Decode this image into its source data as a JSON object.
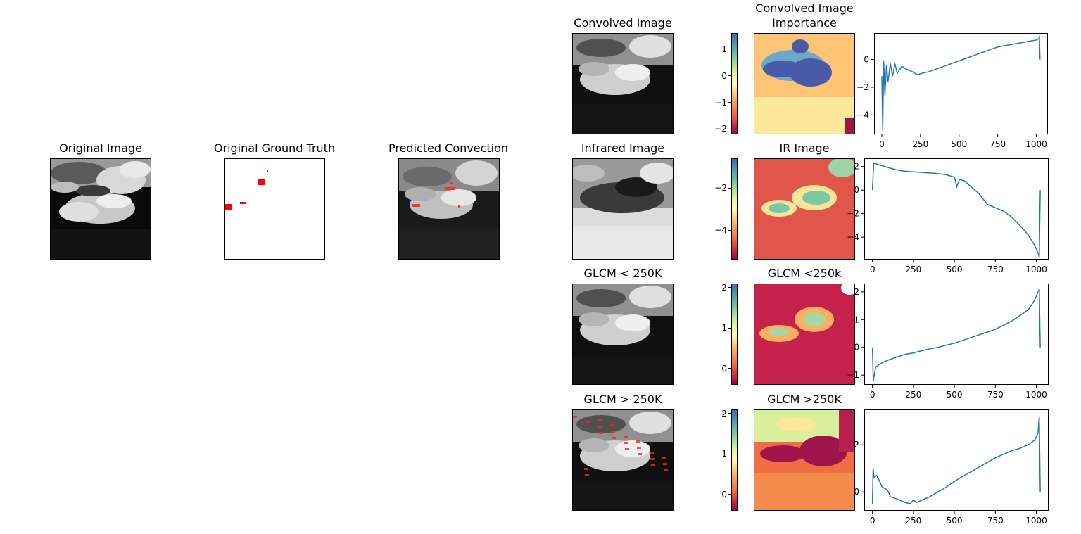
{
  "left_panels": {
    "original_image": {
      "title": "Original Image"
    },
    "ground_truth": {
      "title": "Original Ground Truth"
    },
    "predicted": {
      "title": "Predicted Convection"
    }
  },
  "rows": [
    {
      "image_title": "Convolved Image",
      "importance_title_line1": "Convolved Image",
      "importance_title_line2": "Importance",
      "colorbar_ticks": [
        "1",
        "0",
        "−1",
        "−2"
      ],
      "line": {
        "type": "line",
        "xticks": [
          "0",
          "250",
          "500",
          "750",
          "1000"
        ],
        "yticks": [
          "0",
          "−2",
          "−4"
        ],
        "xlim": [
          -50,
          1075
        ],
        "ylim": [
          -5.4,
          1.9
        ],
        "points": [
          [
            0,
            -1.2
          ],
          [
            6,
            -5.1
          ],
          [
            12,
            -0.1
          ],
          [
            20,
            -2.6
          ],
          [
            30,
            -0.4
          ],
          [
            40,
            -1.6
          ],
          [
            55,
            -0.3
          ],
          [
            70,
            -1.2
          ],
          [
            85,
            -0.3
          ],
          [
            100,
            -1.0
          ],
          [
            130,
            -0.5
          ],
          [
            160,
            -0.7
          ],
          [
            200,
            -0.9
          ],
          [
            230,
            -1.1
          ],
          [
            260,
            -1.0
          ],
          [
            300,
            -0.9
          ],
          [
            350,
            -0.7
          ],
          [
            400,
            -0.5
          ],
          [
            450,
            -0.3
          ],
          [
            500,
            -0.1
          ],
          [
            550,
            0.1
          ],
          [
            600,
            0.3
          ],
          [
            650,
            0.5
          ],
          [
            700,
            0.7
          ],
          [
            750,
            0.9
          ],
          [
            800,
            1.0
          ],
          [
            850,
            1.1
          ],
          [
            900,
            1.2
          ],
          [
            950,
            1.3
          ],
          [
            1000,
            1.4
          ],
          [
            1015,
            1.5
          ],
          [
            1020,
            1.6
          ],
          [
            1024,
            0.0
          ]
        ],
        "color": "#1f77b4"
      }
    },
    {
      "image_title": "Infrared Image",
      "importance_title_line1": "IR Image",
      "importance_title_line2": "",
      "colorbar_ticks": [
        "−2",
        "−4"
      ],
      "line": {
        "type": "line",
        "xticks": [
          "0",
          "250",
          "500",
          "750",
          "1000"
        ],
        "yticks": [
          "2",
          "0",
          "−2",
          "−4"
        ],
        "xlim": [
          -50,
          1075
        ],
        "ylim": [
          -5.9,
          2.7
        ],
        "points": [
          [
            0,
            0.0
          ],
          [
            8,
            2.3
          ],
          [
            50,
            2.1
          ],
          [
            100,
            1.9
          ],
          [
            150,
            1.7
          ],
          [
            200,
            1.6
          ],
          [
            250,
            1.55
          ],
          [
            300,
            1.5
          ],
          [
            350,
            1.45
          ],
          [
            400,
            1.4
          ],
          [
            450,
            1.3
          ],
          [
            500,
            1.1
          ],
          [
            515,
            0.3
          ],
          [
            530,
            0.9
          ],
          [
            560,
            0.8
          ],
          [
            600,
            0.3
          ],
          [
            650,
            -0.3
          ],
          [
            700,
            -1.2
          ],
          [
            750,
            -1.5
          ],
          [
            800,
            -1.8
          ],
          [
            850,
            -2.3
          ],
          [
            900,
            -3.0
          ],
          [
            950,
            -3.8
          ],
          [
            990,
            -4.7
          ],
          [
            1010,
            -5.3
          ],
          [
            1018,
            -5.7
          ],
          [
            1024,
            0.0
          ]
        ],
        "color": "#1f77b4"
      }
    },
    {
      "image_title": "GLCM < 250K",
      "importance_title_line1": "GLCM <250k",
      "importance_title_line2": "",
      "colorbar_ticks": [
        "2",
        "1",
        "0"
      ],
      "line": {
        "type": "line",
        "xticks": [
          "0",
          "250",
          "500",
          "750",
          "1000"
        ],
        "yticks": [
          "2",
          "1",
          "0",
          "−1"
        ],
        "xlim": [
          -50,
          1075
        ],
        "ylim": [
          -1.35,
          2.3
        ],
        "points": [
          [
            0,
            0.0
          ],
          [
            5,
            -1.2
          ],
          [
            20,
            -0.7
          ],
          [
            60,
            -0.55
          ],
          [
            100,
            -0.45
          ],
          [
            150,
            -0.35
          ],
          [
            200,
            -0.25
          ],
          [
            250,
            -0.2
          ],
          [
            300,
            -0.12
          ],
          [
            350,
            -0.05
          ],
          [
            400,
            0.0
          ],
          [
            450,
            0.08
          ],
          [
            500,
            0.15
          ],
          [
            550,
            0.25
          ],
          [
            600,
            0.35
          ],
          [
            650,
            0.45
          ],
          [
            700,
            0.55
          ],
          [
            750,
            0.65
          ],
          [
            800,
            0.8
          ],
          [
            850,
            0.95
          ],
          [
            900,
            1.15
          ],
          [
            950,
            1.35
          ],
          [
            990,
            1.7
          ],
          [
            1010,
            2.0
          ],
          [
            1018,
            2.1
          ],
          [
            1024,
            0.0
          ]
        ],
        "color": "#1f77b4"
      }
    },
    {
      "image_title": "GLCM > 250K",
      "importance_title_line1": "GLCM >250K",
      "importance_title_line2": "",
      "colorbar_ticks": [
        "2",
        "1",
        "0"
      ],
      "line": {
        "type": "line",
        "xticks": [
          "0",
          "250",
          "500",
          "750",
          "1000"
        ],
        "yticks": [
          "2",
          "0"
        ],
        "xlim": [
          -50,
          1075
        ],
        "ylim": [
          -0.8,
          3.5
        ],
        "points": [
          [
            0,
            -0.5
          ],
          [
            4,
            1.0
          ],
          [
            10,
            0.6
          ],
          [
            25,
            0.7
          ],
          [
            40,
            0.5
          ],
          [
            60,
            0.2
          ],
          [
            90,
            0.1
          ],
          [
            110,
            -0.2
          ],
          [
            150,
            -0.3
          ],
          [
            200,
            -0.45
          ],
          [
            230,
            -0.5
          ],
          [
            250,
            -0.35
          ],
          [
            270,
            -0.45
          ],
          [
            300,
            -0.35
          ],
          [
            350,
            -0.2
          ],
          [
            400,
            0.0
          ],
          [
            450,
            0.2
          ],
          [
            500,
            0.45
          ],
          [
            550,
            0.65
          ],
          [
            600,
            0.85
          ],
          [
            650,
            1.05
          ],
          [
            700,
            1.25
          ],
          [
            750,
            1.45
          ],
          [
            800,
            1.6
          ],
          [
            850,
            1.75
          ],
          [
            900,
            1.85
          ],
          [
            950,
            2.0
          ],
          [
            990,
            2.2
          ],
          [
            1010,
            2.5
          ],
          [
            1018,
            3.2
          ],
          [
            1024,
            0.0
          ]
        ],
        "color": "#1f77b4"
      }
    }
  ],
  "colormap": {
    "name": "Spectral",
    "top": "#3a7cbb",
    "high": "#7dc8a4",
    "mid": "#fbf8b0",
    "low": "#f06d43",
    "bottom": "#a0144c"
  },
  "overlay_color": "#ff0000"
}
